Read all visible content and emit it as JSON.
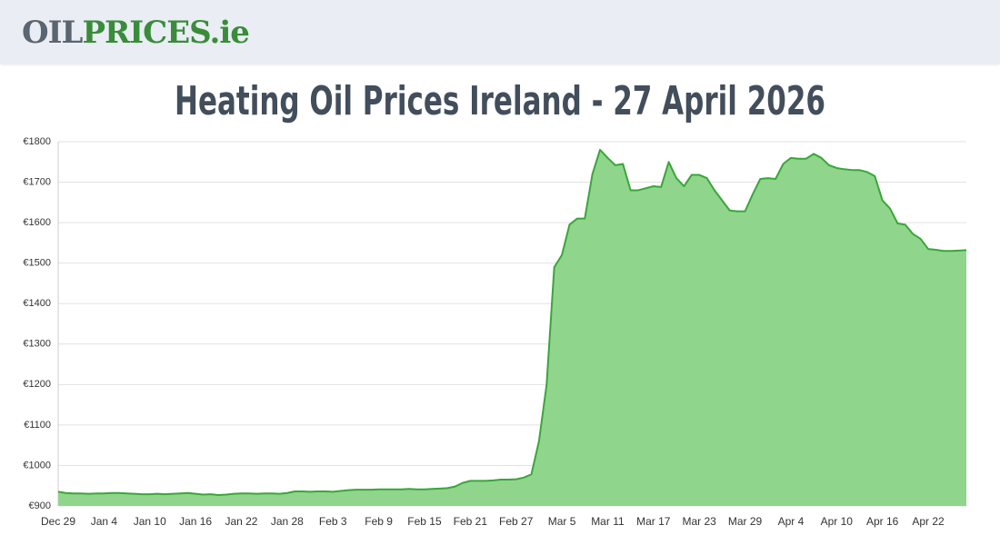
{
  "header": {
    "logo": [
      "OIL",
      "PRICES.ie"
    ]
  },
  "chart_data": {
    "type": "area",
    "title": "Heating Oil Prices Ireland - 27 April 2026",
    "categories": [
      "Dec 29",
      null,
      null,
      null,
      null,
      null,
      "Jan 4",
      null,
      null,
      null,
      null,
      null,
      "Jan 10",
      null,
      null,
      null,
      null,
      null,
      "Jan 16",
      null,
      null,
      null,
      null,
      null,
      "Jan 22",
      null,
      null,
      null,
      null,
      null,
      "Jan 28",
      null,
      null,
      null,
      null,
      null,
      "Feb 3",
      null,
      null,
      null,
      null,
      null,
      "Feb 9",
      null,
      null,
      null,
      null,
      null,
      "Feb 15",
      null,
      null,
      null,
      null,
      null,
      "Feb 21",
      null,
      null,
      null,
      null,
      null,
      "Feb 27",
      null,
      null,
      null,
      null,
      null,
      "Mar 5",
      null,
      null,
      null,
      null,
      null,
      "Mar 11",
      null,
      null,
      null,
      null,
      null,
      "Mar 17",
      null,
      null,
      null,
      null,
      null,
      "Mar 23",
      null,
      null,
      null,
      null,
      null,
      "Mar 29",
      null,
      null,
      null,
      null,
      null,
      "Apr 4",
      null,
      null,
      null,
      null,
      null,
      "Apr 10",
      null,
      null,
      null,
      null,
      null,
      "Apr 16",
      null,
      null,
      null,
      null,
      null,
      "Apr 22",
      null,
      null,
      null,
      null,
      null
    ],
    "values": [
      935,
      932,
      931,
      931,
      930,
      931,
      931,
      932,
      932,
      931,
      930,
      929,
      929,
      930,
      929,
      930,
      931,
      932,
      930,
      928,
      929,
      927,
      928,
      930,
      931,
      931,
      930,
      931,
      931,
      930,
      932,
      936,
      936,
      935,
      936,
      936,
      935,
      937,
      939,
      940,
      940,
      940,
      941,
      941,
      941,
      941,
      942,
      941,
      941,
      942,
      943,
      944,
      948,
      957,
      962,
      962,
      962,
      963,
      965,
      965,
      966,
      970,
      978,
      1060,
      1200,
      1490,
      1520,
      1595,
      1610,
      1610,
      1720,
      1780,
      1760,
      1742,
      1745,
      1680,
      1680,
      1685,
      1690,
      1688,
      1750,
      1710,
      1690,
      1718,
      1718,
      1710,
      1680,
      1655,
      1630,
      1628,
      1628,
      1670,
      1708,
      1710,
      1708,
      1745,
      1760,
      1758,
      1758,
      1770,
      1760,
      1742,
      1735,
      1732,
      1730,
      1730,
      1725,
      1715,
      1655,
      1635,
      1598,
      1595,
      1572,
      1560,
      1535,
      1533,
      1530,
      1530,
      1531,
      1532
    ],
    "color": "#3aa63a",
    "fill": "#90d58c",
    "ylim": [
      900,
      1800
    ],
    "yticks": [
      {
        "value": 900,
        "label": "€900"
      },
      {
        "value": 1000,
        "label": "€1000"
      },
      {
        "value": 1100,
        "label": "€1100"
      },
      {
        "value": 1200,
        "label": "€1200"
      },
      {
        "value": 1300,
        "label": "€1300"
      },
      {
        "value": 1400,
        "label": "€1400"
      },
      {
        "value": 1500,
        "label": "€1500"
      },
      {
        "value": 1600,
        "label": "€1600"
      },
      {
        "value": 1700,
        "label": "€1700"
      },
      {
        "value": 1800,
        "label": "€1800"
      }
    ],
    "grid": true
  }
}
